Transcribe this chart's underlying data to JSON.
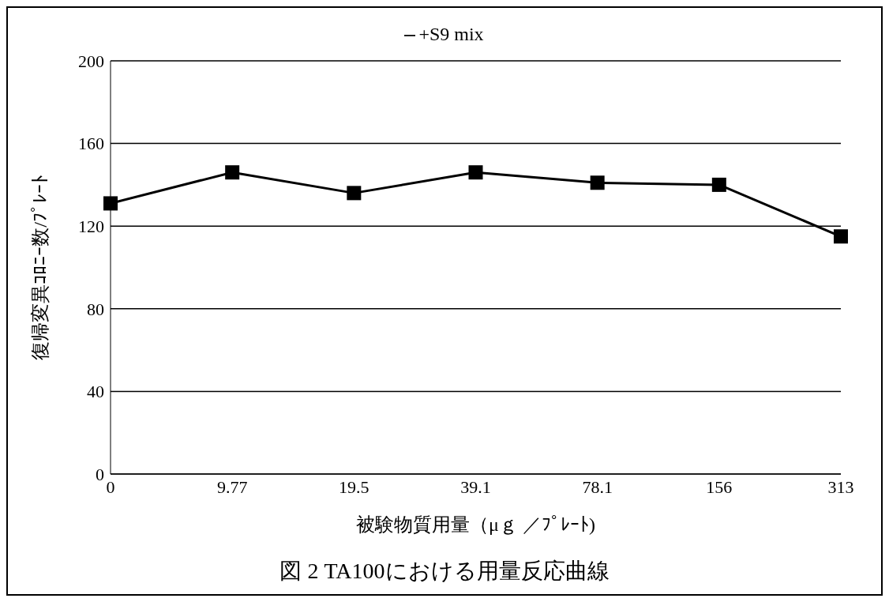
{
  "chart_data": {
    "type": "line",
    "title": "図 2 TA100における用量反応曲線",
    "xlabel": "被験物質用量（μｇ ／ﾌﾟﾚｰﾄ)",
    "ylabel": "復帰変異ｺﾛﾆｰ数/ﾌﾟﾚｰﾄ",
    "categories": [
      "0",
      "9.77",
      "19.5",
      "39.1",
      "78.1",
      "156",
      "313"
    ],
    "series": [
      {
        "name": "+S9 mix",
        "color": "#000000",
        "values": [
          131,
          146,
          136,
          146,
          141,
          140,
          115
        ]
      }
    ],
    "ylim": [
      0,
      200
    ],
    "yticks": [
      0,
      40,
      80,
      120,
      160,
      200
    ],
    "grid": "y",
    "legend": "top",
    "marker": "square",
    "line_style": "solid"
  }
}
